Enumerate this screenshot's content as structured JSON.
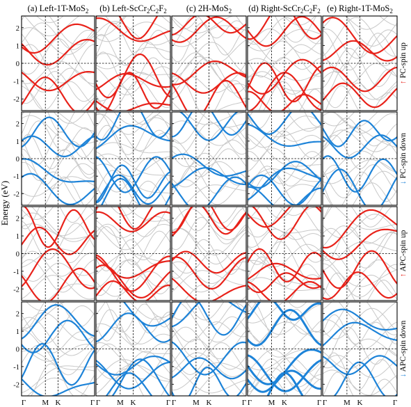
{
  "chart_data": {
    "type": "line",
    "ylabel": "Energy (eV)",
    "ylim": [
      -2.5,
      2.5
    ],
    "y_ticks": [
      "2",
      "1",
      "0",
      "-1",
      "-2"
    ],
    "x_ticks": [
      "Γ",
      "M",
      "K",
      "Γ"
    ],
    "colors": {
      "spin_up": "#e8221a",
      "spin_down": "#1d83d8",
      "background": "#c8c8c8"
    },
    "columns": [
      {
        "prefix": "(a) Left-1T-MoS",
        "sub": "2",
        "mid": "",
        "sub2": "",
        "tail": "",
        "sub3": ""
      },
      {
        "prefix": "(b) Left-ScCr",
        "sub": "2",
        "mid": "C",
        "sub2": "2",
        "tail": "F",
        "sub3": "2"
      },
      {
        "prefix": "(c) 2H-MoS",
        "sub": "2",
        "mid": "",
        "sub2": "",
        "tail": "",
        "sub3": ""
      },
      {
        "prefix": "(d) Right-ScCr",
        "sub": "2",
        "mid": "C",
        "sub2": "2",
        "tail": "F",
        "sub3": "2"
      },
      {
        "prefix": "(e) Right-1T-MoS",
        "sub": "2",
        "mid": "",
        "sub2": "",
        "tail": "",
        "sub3": ""
      }
    ],
    "rows": [
      {
        "label": "PC-spin up",
        "arrow": "↑",
        "color": "#e8221a"
      },
      {
        "label": "PC-spin down",
        "arrow": "↓",
        "color": "#1d83d8"
      },
      {
        "label": "APC-spin up",
        "arrow": "↑",
        "color": "#e8221a"
      },
      {
        "label": "APC-spin down",
        "arrow": "↓",
        "color": "#1d83d8"
      }
    ]
  }
}
